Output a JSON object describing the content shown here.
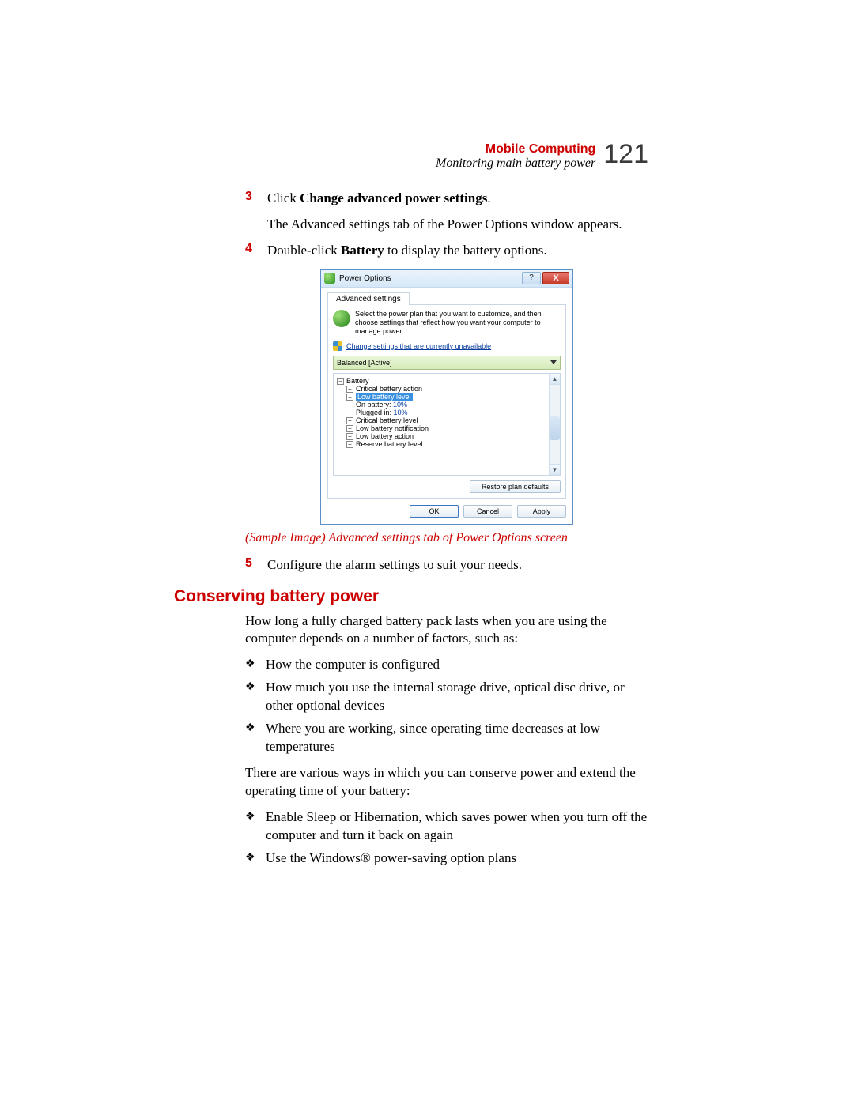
{
  "header": {
    "chapter_title": "Mobile Computing",
    "subtitle": "Monitoring main battery power",
    "page_number": "121"
  },
  "steps": {
    "s3_num": "3",
    "s3_prefix": "Click ",
    "s3_bold": "Change advanced power settings",
    "s3_suffix": ".",
    "s3_sub": "The Advanced settings tab of the Power Options window appears.",
    "s4_num": "4",
    "s4_prefix": "Double-click ",
    "s4_bold": "Battery",
    "s4_suffix": " to display the battery options.",
    "s5_num": "5",
    "s5_text": "Configure the alarm settings to suit your needs."
  },
  "caption": "(Sample Image) Advanced settings tab of Power Options screen",
  "section_heading": "Conserving battery power",
  "para1": "How long a fully charged battery pack lasts when you are using the computer depends on a number of factors, such as:",
  "bullets1": {
    "b1": "How the computer is configured",
    "b2": "How much you use the internal storage drive, optical disc drive, or other optional devices",
    "b3": "Where you are working, since operating time decreases at low temperatures"
  },
  "para2": "There are various ways in which you can conserve power and extend the operating time of your battery:",
  "bullets2": {
    "b1": "Enable Sleep or Hibernation, which saves power when you turn off the computer and turn it back on again",
    "b2": "Use the Windows® power-saving option plans"
  },
  "win": {
    "title": "Power Options",
    "help": "?",
    "close": "X",
    "tab": "Advanced settings",
    "info": "Select the power plan that you want to customize, and then choose settings that reflect how you want your computer to manage power.",
    "link": "Change settings that are currently unavailable",
    "select": "Balanced [Active]",
    "tree": {
      "battery": "Battery",
      "crit_action": "Critical battery action",
      "low_level": "Low battery level",
      "on_batt_label": "On battery: ",
      "on_batt_val": "10%",
      "plugged_label": "Plugged in: ",
      "plugged_val": "10%",
      "crit_level": "Critical battery level",
      "low_notif": "Low battery notification",
      "low_action": "Low battery action",
      "reserve": "Reserve battery level"
    },
    "restore": "Restore plan defaults",
    "ok": "OK",
    "cancel": "Cancel",
    "apply": "Apply"
  }
}
